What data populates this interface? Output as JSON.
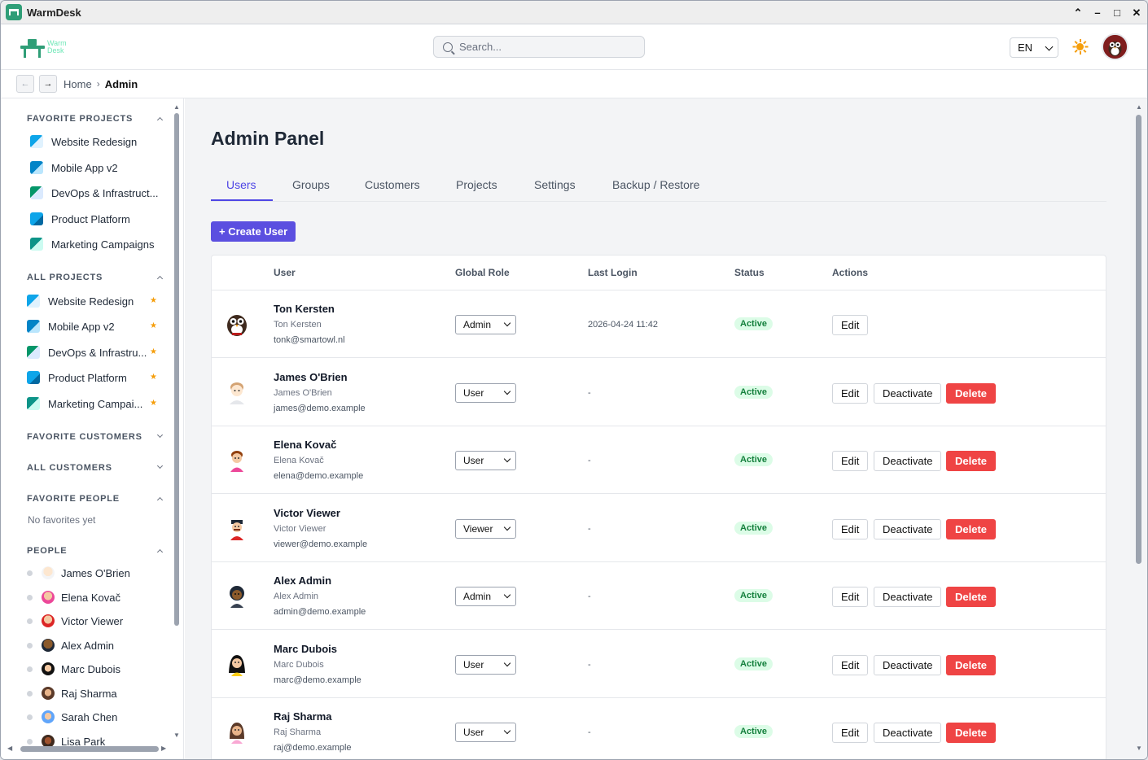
{
  "window": {
    "title": "WarmDesk",
    "controls": [
      "⌃",
      "–",
      "□",
      "✕"
    ]
  },
  "header": {
    "logo_text_1": "Warm",
    "logo_text_2": "Desk",
    "search_placeholder": "Search...",
    "language": "EN"
  },
  "breadcrumb": {
    "back": "←",
    "forward": "→",
    "home": "Home",
    "separator": "›",
    "current": "Admin"
  },
  "sidebar": {
    "favorite_projects_title": "FAVORITE PROJECTS",
    "favorite_projects": [
      {
        "label": "Website Redesign",
        "color": "#0ea5e9"
      },
      {
        "label": "Mobile App v2",
        "color": "#0284c7"
      },
      {
        "label": "DevOps & Infrastruct...",
        "color": "#059669"
      },
      {
        "label": "Product Platform",
        "color": "#0ea5e9"
      },
      {
        "label": "Marketing Campaigns",
        "color": "#0d9488"
      }
    ],
    "all_projects_title": "ALL PROJECTS",
    "all_projects": [
      {
        "label": "Website Redesign",
        "star": "★"
      },
      {
        "label": "Mobile App v2",
        "star": "★"
      },
      {
        "label": "DevOps & Infrastru...",
        "star": "★"
      },
      {
        "label": "Product Platform",
        "star": "★"
      },
      {
        "label": "Marketing Campai...",
        "star": "★"
      }
    ],
    "favorite_customers_title": "FAVORITE CUSTOMERS",
    "all_customers_title": "ALL CUSTOMERS",
    "favorite_people_title": "FAVORITE PEOPLE",
    "no_favorites": "No favorites yet",
    "people_title": "PEOPLE",
    "people": [
      {
        "label": "James O'Brien"
      },
      {
        "label": "Elena Kovač"
      },
      {
        "label": "Victor Viewer"
      },
      {
        "label": "Alex Admin"
      },
      {
        "label": "Marc Dubois"
      },
      {
        "label": "Raj Sharma"
      },
      {
        "label": "Sarah Chen"
      },
      {
        "label": "Lisa Park"
      }
    ]
  },
  "main": {
    "title": "Admin Panel",
    "tabs": [
      {
        "label": "Users",
        "active": true
      },
      {
        "label": "Groups"
      },
      {
        "label": "Customers"
      },
      {
        "label": "Projects"
      },
      {
        "label": "Settings"
      },
      {
        "label": "Backup / Restore"
      }
    ],
    "create_button": "+ Create User",
    "table": {
      "headers": {
        "user": "User",
        "role": "Global Role",
        "last_login": "Last Login",
        "status": "Status",
        "actions": "Actions"
      },
      "rows": [
        {
          "name": "Ton Kersten",
          "full": "Ton Kersten",
          "email": "tonk@smartowl.nl",
          "role": "Admin",
          "last_login": "2026-04-24 11:42",
          "status": "Active",
          "edit": "Edit"
        },
        {
          "name": "James O'Brien",
          "full": "James O'Brien",
          "email": "james@demo.example",
          "role": "User",
          "last_login": "-",
          "status": "Active",
          "edit": "Edit",
          "deactivate": "Deactivate",
          "delete": "Delete"
        },
        {
          "name": "Elena Kovač",
          "full": "Elena Kovač",
          "email": "elena@demo.example",
          "role": "User",
          "last_login": "-",
          "status": "Active",
          "edit": "Edit",
          "deactivate": "Deactivate",
          "delete": "Delete"
        },
        {
          "name": "Victor Viewer",
          "full": "Victor Viewer",
          "email": "viewer@demo.example",
          "role": "Viewer",
          "last_login": "-",
          "status": "Active",
          "edit": "Edit",
          "deactivate": "Deactivate",
          "delete": "Delete"
        },
        {
          "name": "Alex Admin",
          "full": "Alex Admin",
          "email": "admin@demo.example",
          "role": "Admin",
          "last_login": "-",
          "status": "Active",
          "edit": "Edit",
          "deactivate": "Deactivate",
          "delete": "Delete"
        },
        {
          "name": "Marc Dubois",
          "full": "Marc Dubois",
          "email": "marc@demo.example",
          "role": "User",
          "last_login": "-",
          "status": "Active",
          "edit": "Edit",
          "deactivate": "Deactivate",
          "delete": "Delete"
        },
        {
          "name": "Raj Sharma",
          "full": "Raj Sharma",
          "email": "raj@demo.example",
          "role": "User",
          "last_login": "-",
          "status": "Active",
          "edit": "Edit",
          "deactivate": "Deactivate",
          "delete": "Delete"
        }
      ]
    }
  },
  "colors": {
    "accent": "#4f46e5",
    "brand": "#2f9e77",
    "danger": "#ef4444",
    "success_bg": "#dcfce7",
    "success_text": "#15803d",
    "star": "#f59e0b"
  }
}
